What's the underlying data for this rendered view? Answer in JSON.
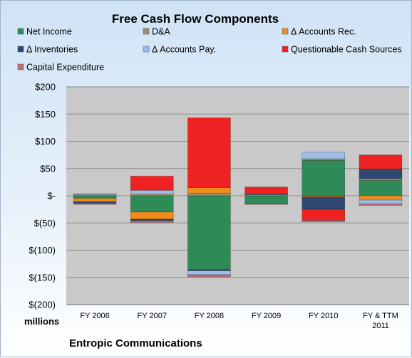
{
  "chart_data": {
    "type": "bar",
    "stacked": true,
    "title": "Free Cash Flow Components",
    "units_label": "millions",
    "company": "Entropic Communications",
    "categories": [
      [
        "FY 2006"
      ],
      [
        "FY 2007"
      ],
      [
        "FY 2008"
      ],
      [
        "FY 2009"
      ],
      [
        "FY 2010"
      ],
      [
        "FY & TTM",
        "2011"
      ]
    ],
    "ylim": [
      -200,
      200
    ],
    "yticks": [
      200,
      150,
      100,
      50,
      0,
      -50,
      -100,
      -150,
      -200
    ],
    "ytick_labels": [
      "$200",
      "$150",
      "$100",
      "$50",
      "$-",
      "$(50)",
      "$(100)",
      "$(150)",
      "$(200)"
    ],
    "grid": true,
    "legend_position": "top",
    "series": [
      {
        "name": "Net Income",
        "color": "#2e8b57",
        "values": [
          -5,
          -30,
          -136,
          -14,
          65,
          28
        ]
      },
      {
        "name": "D&A",
        "color": "#9c8f6e",
        "values": [
          2,
          3,
          5,
          2,
          3,
          3
        ]
      },
      {
        "name": "Δ Accounts Rec.",
        "color": "#f08c1e",
        "values": [
          -6,
          -13,
          10,
          -1,
          -2,
          -8
        ]
      },
      {
        "name": "Δ Inventories",
        "color": "#2c4770",
        "values": [
          -3,
          -3,
          -2,
          1,
          -23,
          18
        ]
      },
      {
        "name": "Δ Accounts Pay.",
        "color": "#9fbde6",
        "values": [
          2,
          7,
          -7,
          1,
          12,
          -7
        ]
      },
      {
        "name": "Questionable Cash Sources",
        "color": "#ee2222",
        "values": [
          0,
          26,
          128,
          12,
          -20,
          26
        ]
      },
      {
        "name": "Capital Expenditure",
        "color": "#c06c78",
        "values": [
          -2,
          -3,
          -4,
          -1,
          -3,
          -3
        ]
      }
    ]
  }
}
